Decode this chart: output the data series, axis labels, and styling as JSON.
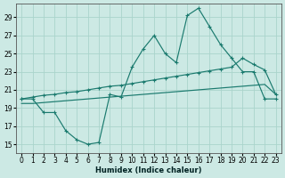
{
  "xlabel": "Humidex (Indice chaleur)",
  "xlim": [
    -0.5,
    23.5
  ],
  "ylim": [
    14.0,
    30.5
  ],
  "yticks": [
    15,
    17,
    19,
    21,
    23,
    25,
    27,
    29
  ],
  "xticks": [
    0,
    1,
    2,
    3,
    4,
    5,
    6,
    7,
    8,
    9,
    10,
    11,
    12,
    13,
    14,
    15,
    16,
    17,
    18,
    19,
    20,
    21,
    22,
    23
  ],
  "bg_color": "#cce9e4",
  "grid_color": "#aad4cc",
  "line_color": "#1a7a6e",
  "series1_x": [
    0,
    1,
    2,
    3,
    4,
    5,
    6,
    7,
    8,
    9,
    10,
    11,
    12,
    13,
    14,
    15,
    16,
    17,
    18,
    19,
    20,
    21,
    22,
    23
  ],
  "series1_y": [
    20,
    20,
    18.5,
    18.5,
    16.5,
    15.5,
    15,
    15.2,
    20.5,
    20.2,
    23.5,
    25.5,
    27.0,
    25.0,
    24.0,
    29.2,
    30.0,
    28.0,
    26.0,
    24.5,
    23.0,
    23.0,
    20.0,
    20.0
  ],
  "series2_x": [
    0,
    1,
    2,
    3,
    4,
    5,
    6,
    7,
    8,
    9,
    10,
    11,
    12,
    13,
    14,
    15,
    16,
    17,
    18,
    19,
    20,
    21,
    22,
    23
  ],
  "series2_y": [
    20.0,
    20.2,
    20.4,
    20.5,
    20.7,
    20.8,
    21.0,
    21.2,
    21.4,
    21.5,
    21.7,
    21.9,
    22.1,
    22.3,
    22.5,
    22.7,
    22.9,
    23.1,
    23.3,
    23.5,
    24.5,
    23.8,
    23.2,
    20.5
  ],
  "series3_x": [
    0,
    1,
    2,
    3,
    4,
    5,
    6,
    7,
    8,
    9,
    10,
    11,
    12,
    13,
    14,
    15,
    16,
    17,
    18,
    19,
    20,
    21,
    22,
    23
  ],
  "series3_y": [
    19.5,
    19.5,
    19.6,
    19.7,
    19.8,
    19.9,
    20.0,
    20.1,
    20.2,
    20.3,
    20.4,
    20.5,
    20.6,
    20.7,
    20.8,
    20.9,
    21.0,
    21.1,
    21.2,
    21.3,
    21.4,
    21.5,
    21.6,
    20.5
  ]
}
